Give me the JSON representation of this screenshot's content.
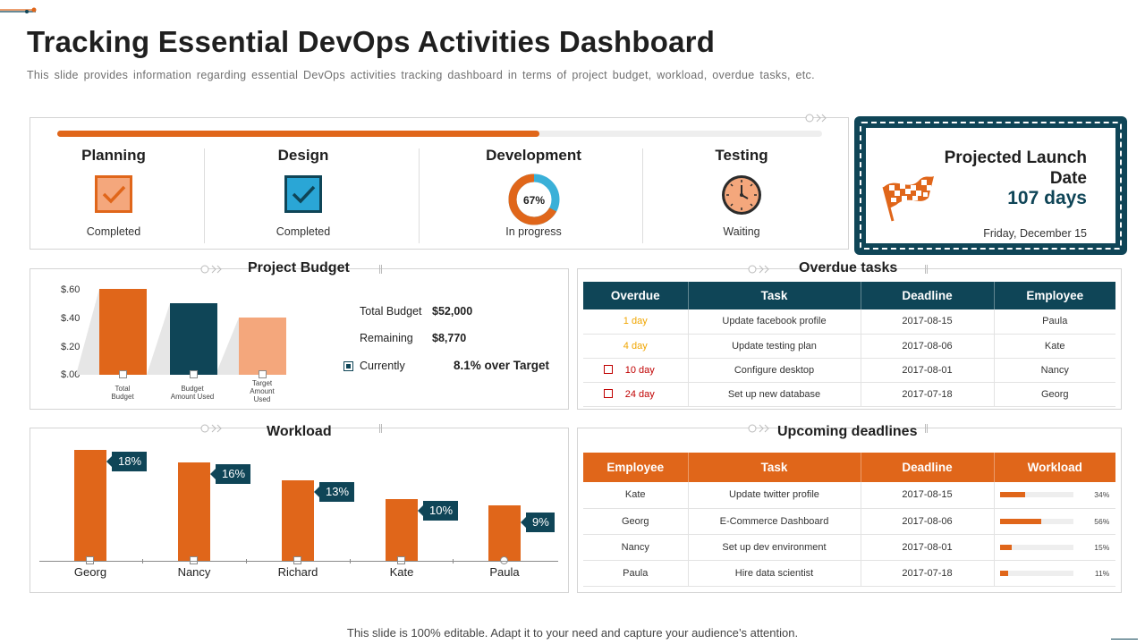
{
  "header": {
    "title": "Tracking Essential DevOps Activities Dashboard",
    "subtitle": "This slide provides information regarding essential DevOps activities tracking dashboard in terms of project budget, workload, overdue tasks, etc."
  },
  "footer": {
    "text": "This slide is 100% editable. Adapt it to your need and capture your audience’s attention."
  },
  "colors": {
    "accent": "#e0661a",
    "navy": "#0f4557",
    "peach": "#f4a77c",
    "amber": "#f0a500",
    "red": "#c00000"
  },
  "progress": {
    "overall_fraction": 0.63,
    "phases": [
      {
        "title": "Planning",
        "status": "Completed",
        "icon": "checkbox-checked-orange-icon"
      },
      {
        "title": "Design",
        "status": "Completed",
        "icon": "checkbox-checked-blue-icon"
      },
      {
        "title": "Development",
        "status": "In progress",
        "percent_label": "67%",
        "percent": 67,
        "icon": "donut-progress-icon"
      },
      {
        "title": "Testing",
        "status": "Waiting",
        "icon": "clock-icon"
      }
    ]
  },
  "launch": {
    "title": "Projected Launch Date",
    "days": "107 days",
    "date": "Friday, December 15",
    "icon": "checkered-flag-icon"
  },
  "budget": {
    "title": "Project Budget",
    "chart_data": {
      "type": "bar",
      "categories": [
        "Total Budget",
        "Budget Amount Used",
        "Target Amount Used"
      ],
      "values": [
        0.6,
        0.5,
        0.4
      ],
      "ylim": [
        0,
        0.6
      ],
      "yticks": [
        "$.60",
        "$.40",
        "$.20",
        "$.00"
      ],
      "grid": false,
      "bar_colors": [
        "#e0661a",
        "#0f4557",
        "#f4a77c"
      ],
      "xlabels": [
        [
          "Total",
          "Budget"
        ],
        [
          "Budget",
          "Amount Used"
        ],
        [
          "Target",
          "Amount",
          "Used"
        ]
      ]
    },
    "stats": [
      {
        "label": "Total Budget",
        "value": "$52,000"
      },
      {
        "label": "Remaining",
        "value": "$8,770"
      },
      {
        "label": "Currently",
        "value": "8.1% over Target"
      }
    ]
  },
  "overdue": {
    "title": "Overdue tasks",
    "columns": [
      "Overdue",
      "Task",
      "Deadline",
      "Employee"
    ],
    "rows": [
      {
        "overdue": "1 day",
        "task": "Update  facebook profile",
        "deadline": "2017-08-15",
        "employee": "Paula",
        "severity": "amber",
        "flag": false
      },
      {
        "overdue": "4 day",
        "task": "Update testing plan",
        "deadline": "2017-08-06",
        "employee": "Kate",
        "severity": "amber",
        "flag": false
      },
      {
        "overdue": "10 day",
        "task": "Configure desktop",
        "deadline": "2017-08-01",
        "employee": "Nancy",
        "severity": "red",
        "flag": true
      },
      {
        "overdue": "24 day",
        "task": "Set up new database",
        "deadline": "2017-07-18",
        "employee": "Georg",
        "severity": "red",
        "flag": true
      }
    ]
  },
  "workload": {
    "title": "Workload",
    "chart_data": {
      "type": "bar",
      "categories": [
        "Georg",
        "Nancy",
        "Richard",
        "Kate",
        "Paula"
      ],
      "values": [
        18,
        16,
        13,
        10,
        9
      ],
      "data_labels": [
        "18%",
        "16%",
        "13%",
        "10%",
        "9%"
      ],
      "ylim": [
        0,
        18
      ],
      "grid": false,
      "bar_color": "#e0661a"
    }
  },
  "upcoming": {
    "title": "Upcoming deadlines",
    "columns": [
      "Employee",
      "Task",
      "Deadline",
      "Workload"
    ],
    "rows": [
      {
        "employee": "Kate",
        "task": "Update twitter profile",
        "deadline": "2017-08-15",
        "workload": 34,
        "workload_label": "34%"
      },
      {
        "employee": "Georg",
        "task": "E-Commerce  Dashboard",
        "deadline": "2017-08-06",
        "workload": 56,
        "workload_label": "56%"
      },
      {
        "employee": "Nancy",
        "task": "Set up dev environment",
        "deadline": "2017-08-01",
        "workload": 15,
        "workload_label": "15%"
      },
      {
        "employee": "Paula",
        "task": "Hire data scientist",
        "deadline": "2017-07-18",
        "workload": 11,
        "workload_label": "11%"
      }
    ]
  }
}
